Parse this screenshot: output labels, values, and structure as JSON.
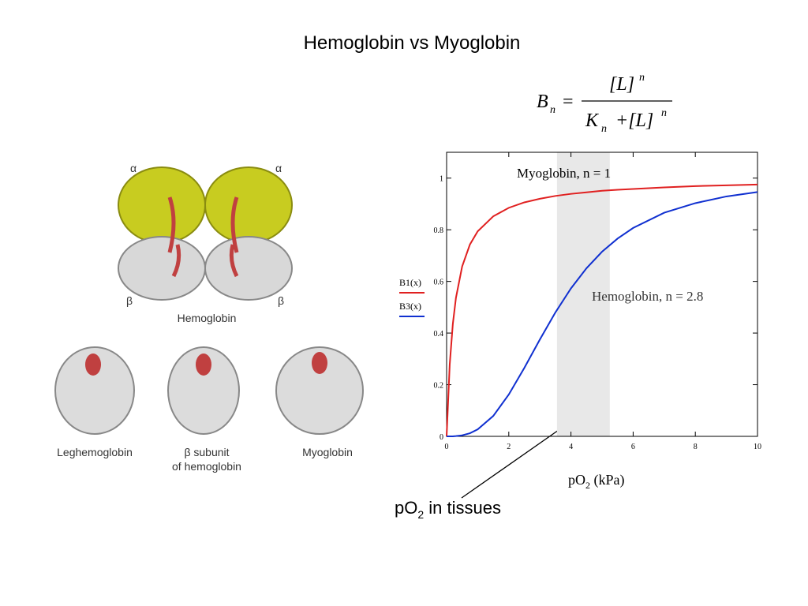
{
  "title": "Hemoglobin vs Myoglobin",
  "formula": [
    "B",
    "n",
    "=",
    "[L]",
    "n",
    "K",
    "n",
    "+[L]",
    "n"
  ],
  "figure_labels": {
    "alpha": "α",
    "beta": "β",
    "hemoglobin": "Hemoglobin",
    "leghemoglobin": "Leghemoglobin",
    "subunit": "β subunit",
    "subunit_of": "of hemoglobin",
    "myoglobin": "Myoglobin"
  },
  "tissue_note": {
    "text": "pO",
    "sub": "2",
    "rest": " in tissues"
  },
  "chart_data": {
    "type": "line",
    "x_label": {
      "text": "pO",
      "sub": "2",
      "rest": " (kPa)"
    },
    "annotations": [
      "Myoglobin, n = 1",
      "Hemoglobin, n = 2.8"
    ],
    "shaded_range": [
      3.55,
      5.25
    ],
    "x": [
      0,
      0.1,
      0.2,
      0.3,
      0.5,
      0.75,
      1,
      1.5,
      2,
      2.5,
      3,
      3.5,
      4,
      4.5,
      5,
      5.5,
      6,
      7,
      8,
      9,
      10
    ],
    "series": [
      {
        "name": "B1(x)",
        "color": "#e02020",
        "values": [
          0,
          0.278,
          0.435,
          0.536,
          0.658,
          0.743,
          0.794,
          0.852,
          0.885,
          0.906,
          0.92,
          0.931,
          0.939,
          0.945,
          0.951,
          0.955,
          0.958,
          0.964,
          0.969,
          0.972,
          0.975
        ]
      },
      {
        "name": "B3(x)",
        "color": "#1030d0",
        "values": [
          0,
          0,
          0,
          0.001,
          0.004,
          0.012,
          0.027,
          0.079,
          0.162,
          0.265,
          0.375,
          0.48,
          0.573,
          0.651,
          0.715,
          0.766,
          0.807,
          0.866,
          0.903,
          0.929,
          0.946
        ]
      }
    ],
    "xlim": [
      0,
      10
    ],
    "ylim": [
      0,
      1.1
    ],
    "xticks": [
      0,
      2,
      4,
      6,
      8,
      10
    ],
    "yticks": [
      0,
      0.2,
      0.4,
      0.6,
      0.8,
      1
    ],
    "grid": false
  }
}
